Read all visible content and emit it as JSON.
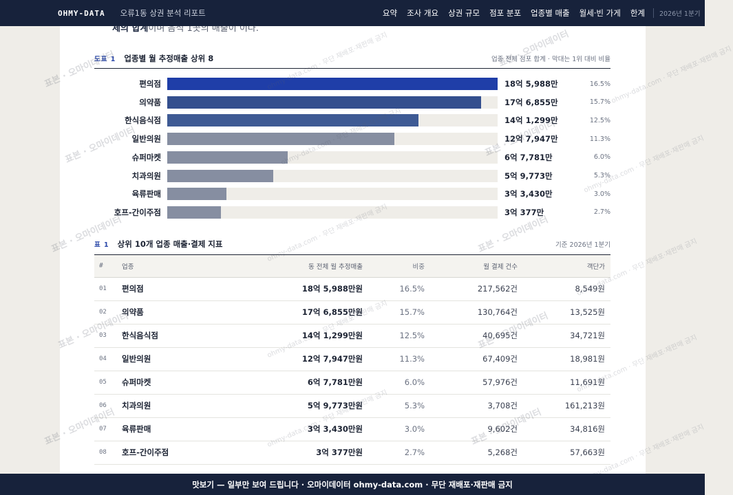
{
  "header": {
    "brand": "OHMY-DATA",
    "report_title": "오류1동 상권 분석 리포트",
    "nav": [
      "요약",
      "조사 개요",
      "상권 규모",
      "점포 분포",
      "업종별 매출",
      "월세·빈 가게",
      "한계"
    ],
    "date": "2026년 1분기"
  },
  "intro_fragment": {
    "bold": "체의 합계",
    "rest": "이며 음식 1곳의 매출이 이다."
  },
  "figure": {
    "tag": "도표 1",
    "title": "업종별 월 추정매출 상위 8",
    "note": "업종 전체 점포 합계 · 막대는 1위 대비 비율",
    "colors": [
      "#1f3ea8",
      "#344f8e",
      "#3e5a94",
      "#868ea1",
      "#868ea1",
      "#868ea1",
      "#868ea1",
      "#868ea1"
    ]
  },
  "chart_data": {
    "type": "bar",
    "title": "업종별 월 추정매출 상위 8",
    "categories": [
      "편의점",
      "의약품",
      "한식음식점",
      "일반의원",
      "슈퍼마켓",
      "치과의원",
      "육류판매",
      "호프-간이주점"
    ],
    "values": [
      1859880000,
      1768550000,
      1412990000,
      1279470000,
      677810000,
      597730000,
      334300000,
      303770000
    ],
    "value_labels": [
      "18억 5,988만",
      "17억 6,855만",
      "14억 1,299만",
      "12억 7,947만",
      "6억 7,781만",
      "5억 9,773만",
      "3억 3,430만",
      "3억 377만"
    ],
    "shares": [
      "16.5%",
      "15.7%",
      "12.5%",
      "11.3%",
      "6.0%",
      "5.3%",
      "3.0%",
      "2.7%"
    ],
    "xlim": [
      0,
      1859880000
    ]
  },
  "table": {
    "tag": "표 1",
    "title": "상위 10개 업종 매출·결제 지표",
    "note": "기준 2026년 1분기",
    "headers": [
      "#",
      "업종",
      "동 전체 월 추정매출",
      "비중",
      "월 결제 건수",
      "객단가"
    ],
    "rows": [
      [
        "01",
        "편의점",
        "18억 5,988만원",
        "16.5%",
        "217,562건",
        "8,549원"
      ],
      [
        "02",
        "의약품",
        "17억 6,855만원",
        "15.7%",
        "130,764건",
        "13,525원"
      ],
      [
        "03",
        "한식음식점",
        "14억 1,299만원",
        "12.5%",
        "40,695건",
        "34,721원"
      ],
      [
        "04",
        "일반의원",
        "12억 7,947만원",
        "11.3%",
        "67,409건",
        "18,981원"
      ],
      [
        "05",
        "슈퍼마켓",
        "6억 7,781만원",
        "6.0%",
        "57,976건",
        "11,691원"
      ],
      [
        "06",
        "치과의원",
        "5억 9,773만원",
        "5.3%",
        "3,708건",
        "161,213원"
      ],
      [
        "07",
        "육류판매",
        "3억 3,430만원",
        "3.0%",
        "9,602건",
        "34,816원"
      ],
      [
        "08",
        "호프-간이주점",
        "3억 377만원",
        "2.7%",
        "5,268건",
        "57,663원"
      ]
    ]
  },
  "watermark": {
    "text": "표본 · 오마이데이터",
    "small": "ohmy-data.com · 무단 재배포·재판매 금지"
  },
  "banner": "맛보기 — 일부만 보여 드립니다 · 오마이데이터 ohmy-data.com · 무단 재배포·재판매 금지"
}
